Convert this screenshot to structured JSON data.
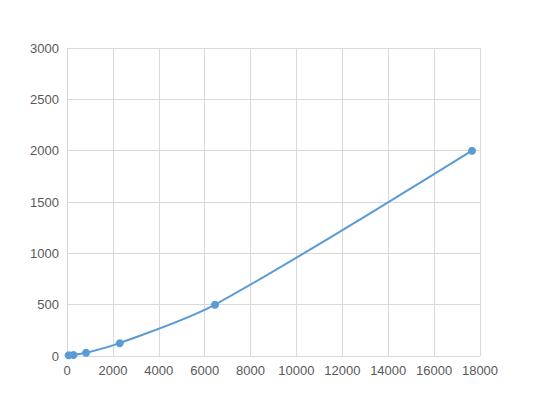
{
  "chart_data": {
    "type": "line",
    "x": [
      70,
      280,
      830,
      2300,
      6450,
      17650
    ],
    "values": [
      8,
      10,
      31,
      125,
      500,
      2000
    ],
    "color": "#5b9bd5",
    "marker": "circle",
    "xlim": [
      0,
      18000
    ],
    "xticks": [
      0,
      2000,
      4000,
      6000,
      8000,
      10000,
      12000,
      14000,
      16000,
      18000
    ],
    "ylim": [
      0,
      3000
    ],
    "yticks": [
      0,
      500,
      1000,
      1500,
      2000,
      2500,
      3000
    ],
    "grid": true
  }
}
